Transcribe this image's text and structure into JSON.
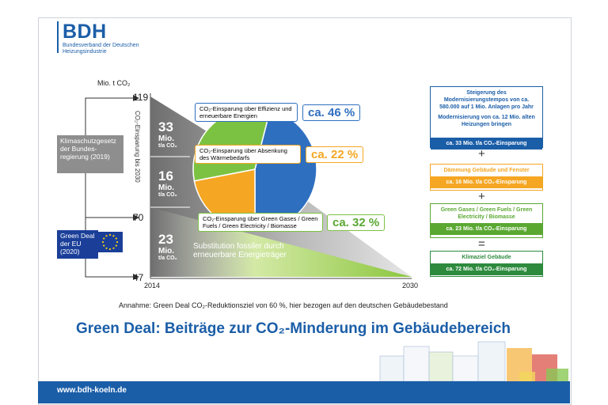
{
  "logo": {
    "name": "BDH",
    "subtitle": "Bundesverband der Deutschen Heizungsindustrie"
  },
  "axis": {
    "unit": "Mio. t CO₂",
    "y_ticks": [
      "119",
      "70",
      "47"
    ],
    "x_ticks": [
      "2014",
      "2030"
    ],
    "vertical_label": "CO₂-Einsparung bis 2030"
  },
  "side_boxes": {
    "klimaschutz": "Klimaschutzgesetz der Bundes-regierung (2019)",
    "green_deal": "Green Deal der EU (2020)"
  },
  "stack": [
    {
      "num": "33",
      "unit": "Mio.",
      "sub": "t/a CO₂"
    },
    {
      "num": "16",
      "unit": "Mio.",
      "sub": "t/a CO₂"
    },
    {
      "num": "23",
      "unit": "Mio.",
      "sub": "t/a CO₂"
    }
  ],
  "substitution_text": "Substitution fossiler durch erneuerbare Energieträger",
  "pie": {
    "segments": [
      {
        "label": "CO₂-Einsparung über Effizienz und erneuerbare Energien",
        "pct": "ca. 46 %",
        "value": 46,
        "color": "#2f6fc0"
      },
      {
        "label": "CO₂-Einsparung über Absenkung des Wärmebedarfs",
        "pct": "ca. 22 %",
        "value": 22,
        "color": "#f5a623"
      },
      {
        "label": "CO₂-Einsparung über Green Gases / Green Fuels / Green Electricity / Biomasse",
        "pct": "ca. 32 %",
        "value": 32,
        "color": "#7cc242"
      }
    ]
  },
  "right_panel": [
    {
      "top": "Steigerung des Modernisierungstempos von ca. 580.000 auf 1 Mio. Anlagen pro Jahr",
      "top2": "Modernisierung von ca. 12 Mio. alten Heizungen bringen",
      "bottom": "ca. 33 Mio. t/a CO₂-Einsparung",
      "color": "#1b5ea8"
    },
    {
      "top": "Dämmung Gebäude und Fenster",
      "top2": "",
      "bottom": "ca. 16 Mio. t/a CO₂-Einsparung",
      "color": "#f5a623"
    },
    {
      "top": "Green Gases / Green Fuels / Green Electricity / Biomasse",
      "top2": "",
      "bottom": "ca. 23 Mio. t/a CO₂-Einsparung",
      "color": "#5aa832"
    },
    {
      "top": "Klimaziel Gebäude",
      "top2": "",
      "bottom": "ca. 72 Mio. t/a CO₂-Einsparung",
      "color": "#2e8b3e"
    }
  ],
  "symbols": [
    "+",
    "+",
    "="
  ],
  "note": "Annahme: Green Deal CO₂-Reduktionsziel von 60 %, hier bezogen auf den deutschen Gebäudebestand",
  "title": "Green Deal: Beiträge zur CO₂-Minderung im Gebäudebereich",
  "footer_url": "www.bdh-koeln.de",
  "colors": {
    "brand": "#1b5ea8",
    "orange": "#f5a623",
    "green": "#7cc242",
    "grey": "#8a8a8a"
  }
}
